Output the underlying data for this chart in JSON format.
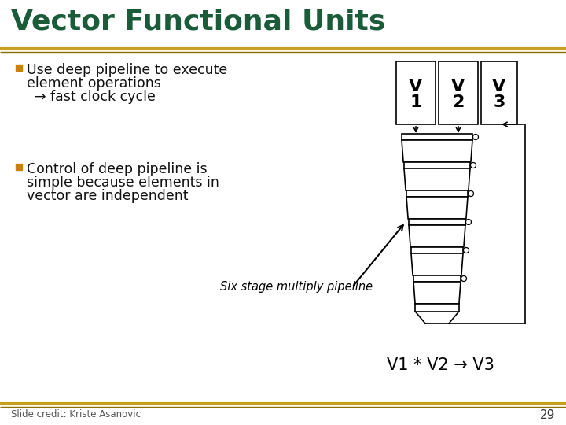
{
  "title": "Vector Functional Units",
  "title_color": "#1a5c3a",
  "title_fontsize": 26,
  "bg_color": "#ffffff",
  "separator_color_gold": "#c8a020",
  "separator_color_dark": "#8B7000",
  "bullet_color": "#c8820a",
  "bullet1_line1": "Use deep pipeline to execute",
  "bullet1_line2": "element operations",
  "bullet1_line3": "→ fast clock cycle",
  "bullet2_line1": "Control of deep pipeline is",
  "bullet2_line2": "simple because elements in",
  "bullet2_line3": "vector are independent",
  "pipeline_label": "Six stage multiply pipeline",
  "equation": "V1 * V2 → V3",
  "credit": "Slide credit: Kriste Asanovic",
  "page_num": "29",
  "text_color": "#111111",
  "box_color": "#000000"
}
